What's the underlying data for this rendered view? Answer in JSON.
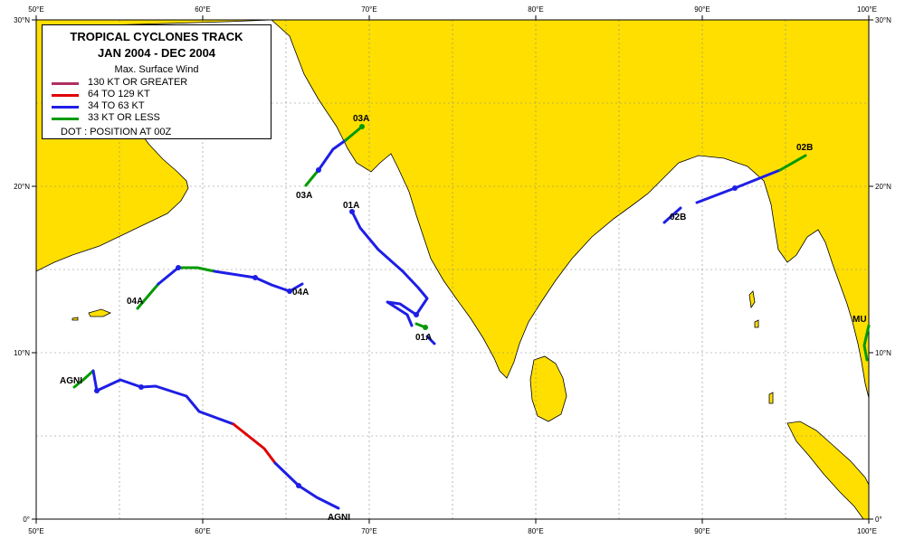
{
  "map": {
    "frame_color": "#000000",
    "land_color": "#ffdf00",
    "sea_color": "#ffffff",
    "grid_color": "#888888",
    "x_ticks": [
      "50°E",
      "60°E",
      "70°E",
      "80°E",
      "90°E",
      "100°E"
    ],
    "y_ticks": [
      "0°",
      "10°N",
      "20°N",
      "30°N"
    ]
  },
  "legend": {
    "title_line1": "TROPICAL  CYCLONES  TRACK",
    "title_line2": "JAN 2004  -  DEC 2004",
    "subtitle": "Max. Surface Wind",
    "items": [
      {
        "label": "130 KT OR GREATER",
        "color": "#b03060"
      },
      {
        "label": "64 TO 129 KT",
        "color": "#e00000"
      },
      {
        "label": "34 TO 63 KT",
        "color": "#1e1ee6"
      },
      {
        "label": "33 KT OR LESS",
        "color": "#009a00"
      }
    ],
    "note": "DOT : POSITION AT 00Z"
  },
  "storm_labels": [
    {
      "id": "lbl-03a-start",
      "text": "03A"
    },
    {
      "id": "lbl-03a-end",
      "text": "03A"
    },
    {
      "id": "lbl-01a-start",
      "text": "01A"
    },
    {
      "id": "lbl-01a-end",
      "text": "01A"
    },
    {
      "id": "lbl-04a-start",
      "text": "04A"
    },
    {
      "id": "lbl-04a-end",
      "text": "04A"
    },
    {
      "id": "lbl-agni-start",
      "text": "AGNI"
    },
    {
      "id": "lbl-agni-end",
      "text": "AGNI"
    },
    {
      "id": "lbl-02b-start",
      "text": "02B"
    },
    {
      "id": "lbl-02b-end",
      "text": "02B"
    },
    {
      "id": "lbl-mu",
      "text": "MU"
    }
  ]
}
